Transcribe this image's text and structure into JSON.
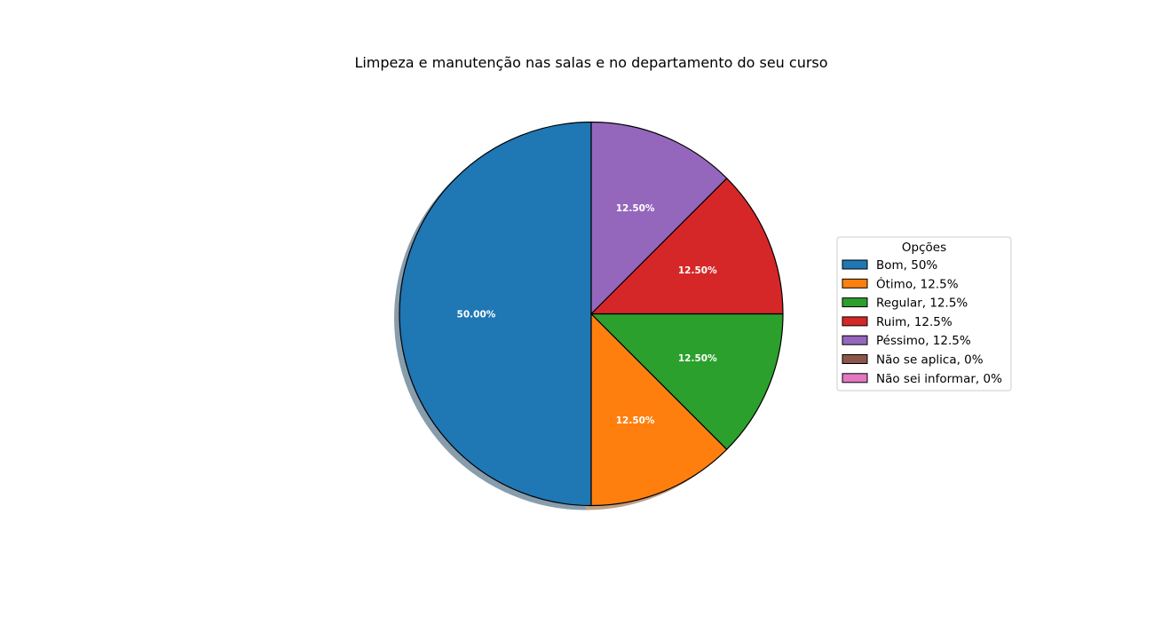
{
  "chart_data": {
    "type": "pie",
    "title": "Limpeza e manutenção nas salas e no departamento do seu curso",
    "legend_title": "Opções",
    "legend_position": "center-right",
    "shadow": true,
    "start_angle_deg": 90,
    "direction": "counterclockwise",
    "slices": [
      {
        "label": "Bom, 50%",
        "value": 50.0,
        "pct_label": "50.00%",
        "color": "#1f77b4"
      },
      {
        "label": "Ótimo, 12.5%",
        "value": 12.5,
        "pct_label": "12.50%",
        "color": "#ff7f0e"
      },
      {
        "label": "Regular, 12.5%",
        "value": 12.5,
        "pct_label": "12.50%",
        "color": "#2ca02c"
      },
      {
        "label": "Ruim, 12.5%",
        "value": 12.5,
        "pct_label": "12.50%",
        "color": "#d62728"
      },
      {
        "label": "Péssimo, 12.5%",
        "value": 12.5,
        "pct_label": "12.50%",
        "color": "#9467bd"
      },
      {
        "label": "Não se aplica, 0%",
        "value": 0,
        "pct_label": "",
        "color": "#8c564b"
      },
      {
        "label": "Não sei informar, 0%",
        "value": 0,
        "pct_label": "",
        "color": "#e377c2"
      }
    ]
  }
}
